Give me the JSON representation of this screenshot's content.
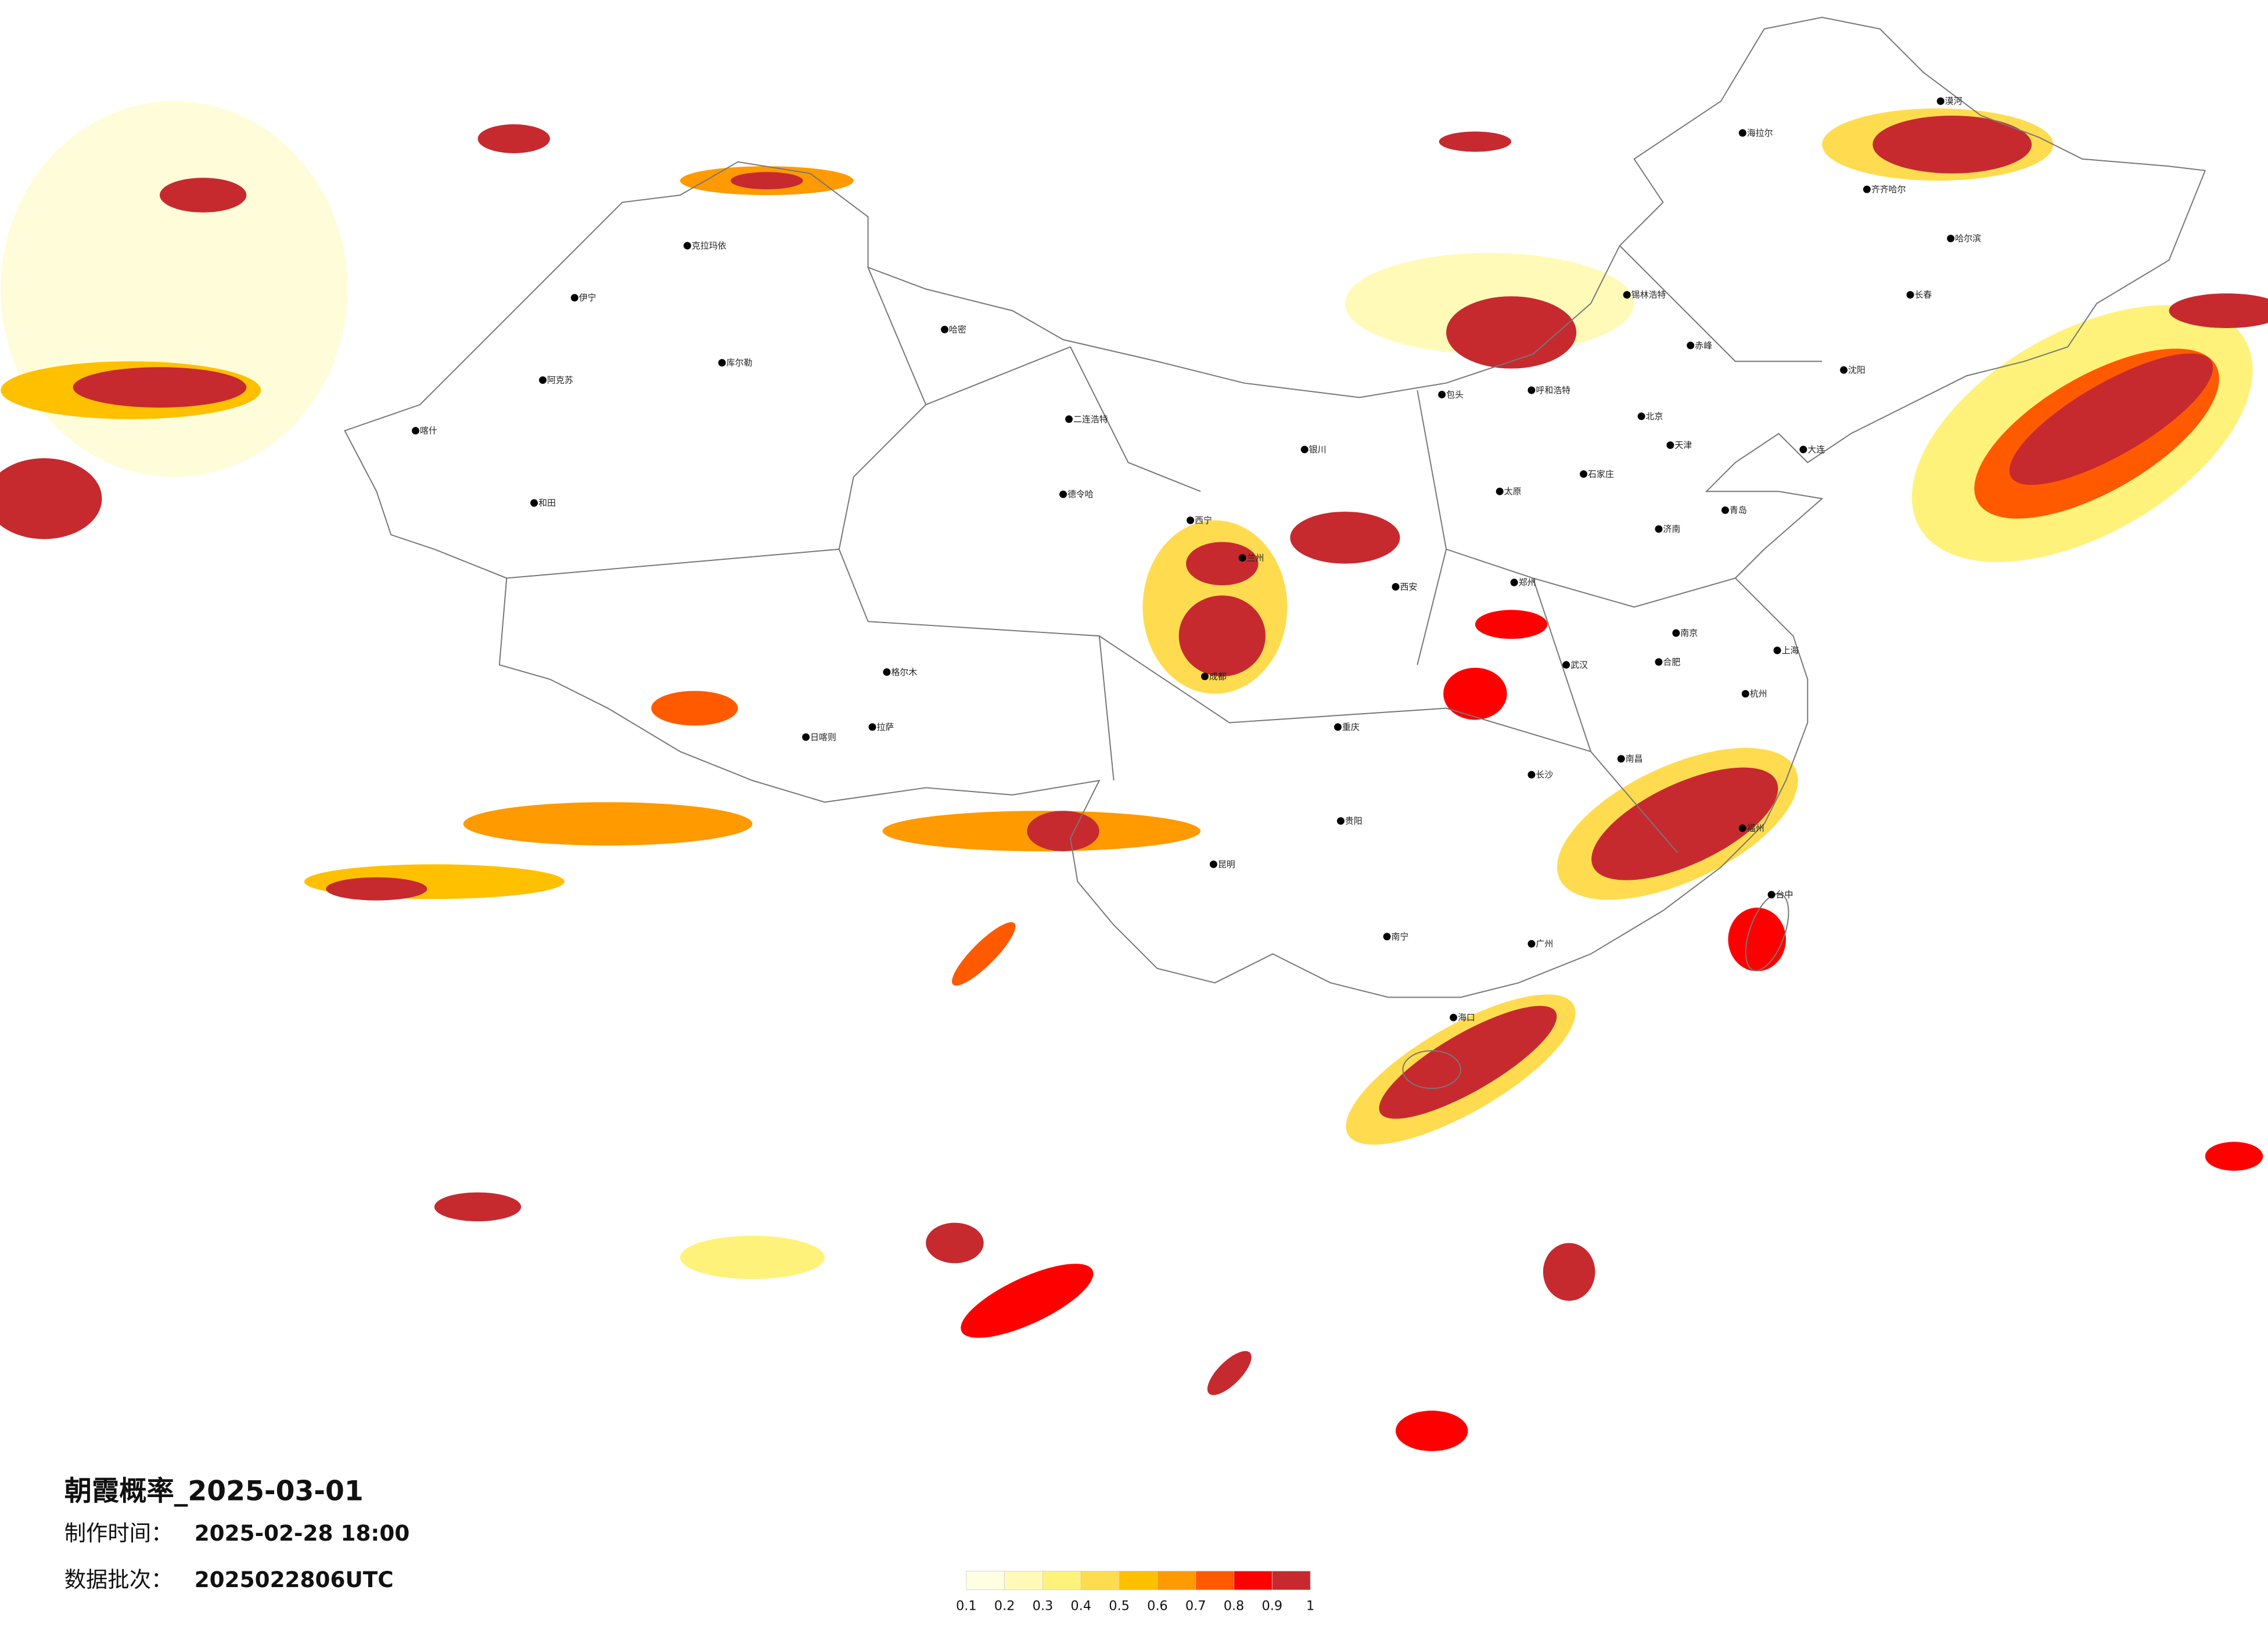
{
  "header": {
    "title": "朝霞概率_2025-03-01",
    "info": [
      {
        "label": "制作时间：",
        "value": "2025-02-28 18:00"
      },
      {
        "label": "数据批次：",
        "value": "2025022806UTC"
      }
    ]
  },
  "legend": {
    "ticks": [
      0.1,
      0.2,
      0.3,
      0.4,
      0.5,
      0.6,
      0.7,
      0.8,
      0.9,
      1
    ],
    "colors": [
      "#fffde2",
      "#fffab8",
      "#fff27a",
      "#ffdc4f",
      "#ffc000",
      "#ff9a00",
      "#ff5a00",
      "#ff0000",
      "#c62a2f"
    ]
  },
  "cities": [
    "克拉玛依",
    "伊宁",
    "喀什",
    "阿克苏",
    "和田",
    "哈密",
    "库尔勒",
    "拉萨",
    "日喀则",
    "格尔木",
    "德令哈",
    "西宁",
    "兰州",
    "银川",
    "呼和浩特",
    "北京",
    "天津",
    "石家庄",
    "太原",
    "济南",
    "郑州",
    "西安",
    "成都",
    "重庆",
    "武汉",
    "长沙",
    "南昌",
    "杭州",
    "南京",
    "上海",
    "福州",
    "广州",
    "南宁",
    "贵阳",
    "昆明",
    "哈尔滨",
    "长春",
    "沈阳",
    "大连",
    "海口",
    "台中",
    "海拉尔",
    "漠河",
    "齐齐哈尔",
    "锡林浩特",
    "包头",
    "二连浩特",
    "赤峰",
    "青岛",
    "合肥"
  ]
}
